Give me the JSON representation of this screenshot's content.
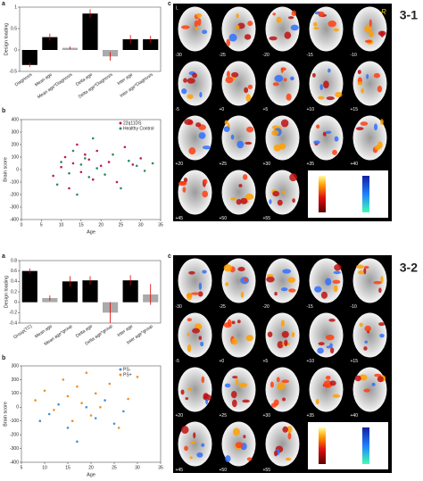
{
  "chart_data": [
    {
      "type": "bar",
      "panel_label": "a",
      "y_label": "Design loading",
      "categories": [
        "Diagnosis",
        "Mean age",
        "Mean age*Diagnosis",
        "Delta age",
        "Delta age*Diagnosis",
        "Inter age",
        "Inter age*Diagnosis"
      ],
      "values": [
        -0.35,
        0.3,
        0.05,
        0.85,
        -0.15,
        0.25,
        0.25
      ],
      "errors": [
        0.05,
        0.08,
        0.03,
        0.1,
        0.1,
        0.1,
        0.08
      ],
      "colors": [
        "#000000",
        "#000000",
        "#aaaaaa",
        "#000000",
        "#aaaaaa",
        "#000000",
        "#000000"
      ],
      "error_color": "#e00000",
      "ylim": [
        -0.5,
        1
      ],
      "yticks": [
        -0.5,
        0,
        0.5,
        1
      ]
    },
    {
      "type": "scatter",
      "panel_label": "b",
      "x_label": "Age",
      "y_label": "Brain score",
      "series": [
        {
          "name": "22q11DS",
          "color": "#c2185b",
          "x": [
            8,
            10,
            11,
            12,
            13,
            14,
            15,
            16,
            17,
            18,
            19,
            20,
            22,
            24,
            26,
            28,
            30
          ],
          "values": [
            -50,
            20,
            100,
            -150,
            50,
            200,
            -20,
            120,
            80,
            -80,
            150,
            30,
            60,
            -100,
            180,
            40,
            90
          ]
        },
        {
          "name": "Healthy Control",
          "color": "#2e8b57",
          "x": [
            9,
            10,
            12,
            13,
            14,
            15,
            16,
            17,
            18,
            19,
            21,
            23,
            25,
            27,
            29,
            31,
            33
          ],
          "values": [
            -120,
            60,
            -30,
            150,
            -200,
            40,
            90,
            -60,
            250,
            10,
            -40,
            120,
            -150,
            70,
            30,
            -10,
            50
          ]
        }
      ],
      "xlim": [
        0,
        35
      ],
      "xticks": [
        0,
        5,
        10,
        15,
        20,
        25,
        30,
        35
      ],
      "ylim": [
        -400,
        400
      ],
      "yticks": [
        -400,
        -300,
        -200,
        -100,
        0,
        100,
        200,
        300,
        400
      ]
    },
    {
      "type": "bar",
      "panel_label": "a",
      "y_label": "Design loading",
      "categories": [
        "Group(TC)",
        "Mean age",
        "Mean age*group",
        "Delta age",
        "Delta age*group",
        "Inter age",
        "Inter age*group"
      ],
      "values": [
        0.6,
        0.08,
        0.4,
        0.42,
        -0.2,
        0.42,
        0.15
      ],
      "errors": [
        0.05,
        0.05,
        0.1,
        0.08,
        0.2,
        0.1,
        0.2
      ],
      "colors": [
        "#000000",
        "#aaaaaa",
        "#000000",
        "#000000",
        "#aaaaaa",
        "#000000",
        "#aaaaaa"
      ],
      "error_color": "#e00000",
      "ylim": [
        -0.4,
        0.8
      ],
      "yticks": [
        -0.4,
        -0.2,
        0,
        0.2,
        0.4,
        0.6,
        0.8
      ]
    },
    {
      "type": "scatter",
      "panel_label": "b",
      "x_label": "Age",
      "y_label": "Brain score",
      "series": [
        {
          "name": "PS-",
          "color": "#4a90c8",
          "x": [
            9,
            11,
            13,
            15,
            17,
            19,
            21,
            23,
            25,
            27
          ],
          "values": [
            -100,
            -50,
            20,
            -150,
            -250,
            0,
            -80,
            50,
            -120,
            -30
          ]
        },
        {
          "name": "PS+",
          "color": "#f28e2b",
          "x": [
            8,
            10,
            12,
            14,
            15,
            16,
            17,
            18,
            19,
            20,
            21,
            22,
            24,
            26,
            28,
            30
          ],
          "values": [
            50,
            120,
            -20,
            200,
            80,
            -100,
            150,
            30,
            250,
            -60,
            100,
            0,
            170,
            -150,
            60,
            220
          ]
        }
      ],
      "xlim": [
        5,
        35
      ],
      "xticks": [
        5,
        10,
        15,
        20,
        25,
        30,
        35
      ],
      "ylim": [
        -400,
        300
      ],
      "yticks": [
        -400,
        -300,
        -200,
        -100,
        0,
        100,
        200,
        300
      ]
    }
  ],
  "figures": [
    {
      "label": "3-1",
      "panel_label": "c",
      "left": "L",
      "right": "R",
      "slices": [
        "-30",
        "-25",
        "-20",
        "-15",
        "-10",
        "-5",
        "+0",
        "+5",
        "+10",
        "+15",
        "+20",
        "+25",
        "+30",
        "+35",
        "+40",
        "+45",
        "+50",
        "+55"
      ]
    },
    {
      "label": "3-2",
      "panel_label": "c",
      "slices": [
        "-30",
        "-25",
        "-20",
        "-15",
        "-10",
        "-5",
        "+0",
        "+5",
        "+10",
        "+15",
        "+20",
        "+25",
        "+30",
        "+35",
        "+40",
        "+45",
        "+50",
        "+55"
      ]
    }
  ]
}
